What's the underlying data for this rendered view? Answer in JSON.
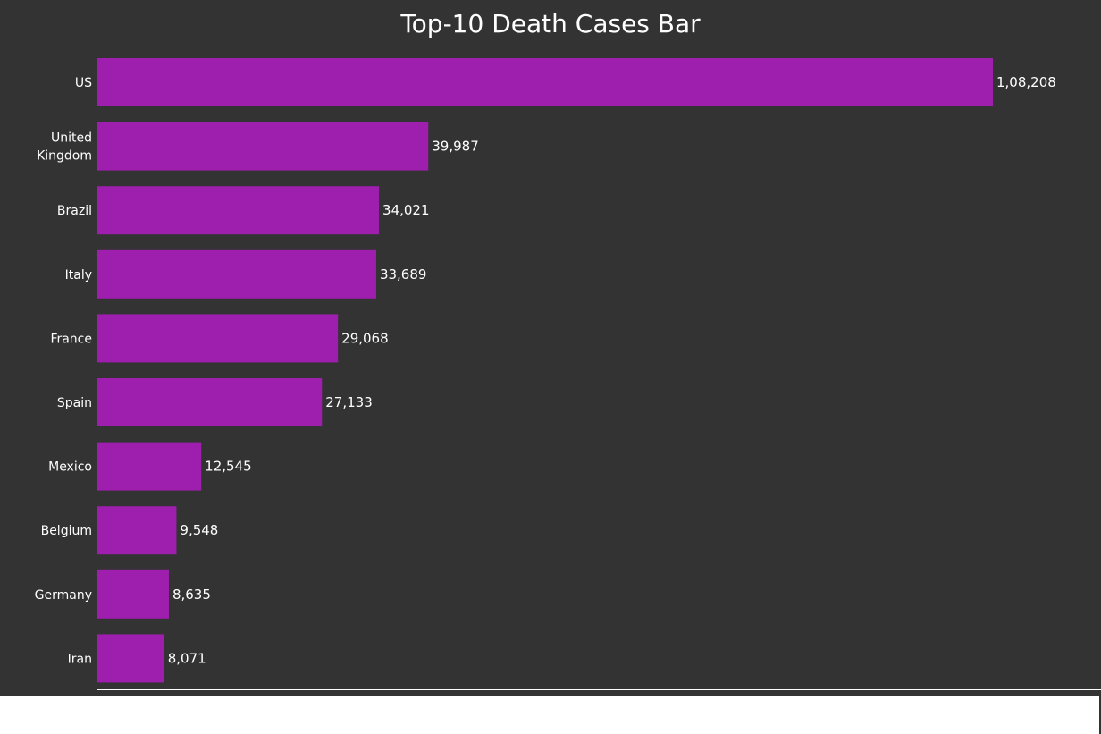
{
  "chart_data": {
    "type": "bar",
    "orientation": "horizontal",
    "title": "Top-10 Death Cases Bar",
    "categories": [
      "US",
      "United Kingdom",
      "Brazil",
      "Italy",
      "France",
      "Spain",
      "Mexico",
      "Belgium",
      "Germany",
      "Iran"
    ],
    "category_lines": [
      [
        "US"
      ],
      [
        "United",
        "Kingdom"
      ],
      [
        "Brazil"
      ],
      [
        "Italy"
      ],
      [
        "France"
      ],
      [
        "Spain"
      ],
      [
        "Mexico"
      ],
      [
        "Belgium"
      ],
      [
        "Germany"
      ],
      [
        "Iran"
      ]
    ],
    "values": [
      108208,
      39987,
      34021,
      33689,
      29068,
      27133,
      12545,
      9548,
      8635,
      8071
    ],
    "value_labels": [
      "1,08,208",
      "39,987",
      "34,021",
      "33,689",
      "29,068",
      "27,133",
      "12,545",
      "9,548",
      "8,635",
      "8,071"
    ],
    "xlim": [
      0,
      108208
    ],
    "grid": false,
    "legend": "none",
    "colors": {
      "bar": "#9e1fad",
      "background": "#333333",
      "text": "#ffffff",
      "axis": "#ffffff"
    }
  }
}
